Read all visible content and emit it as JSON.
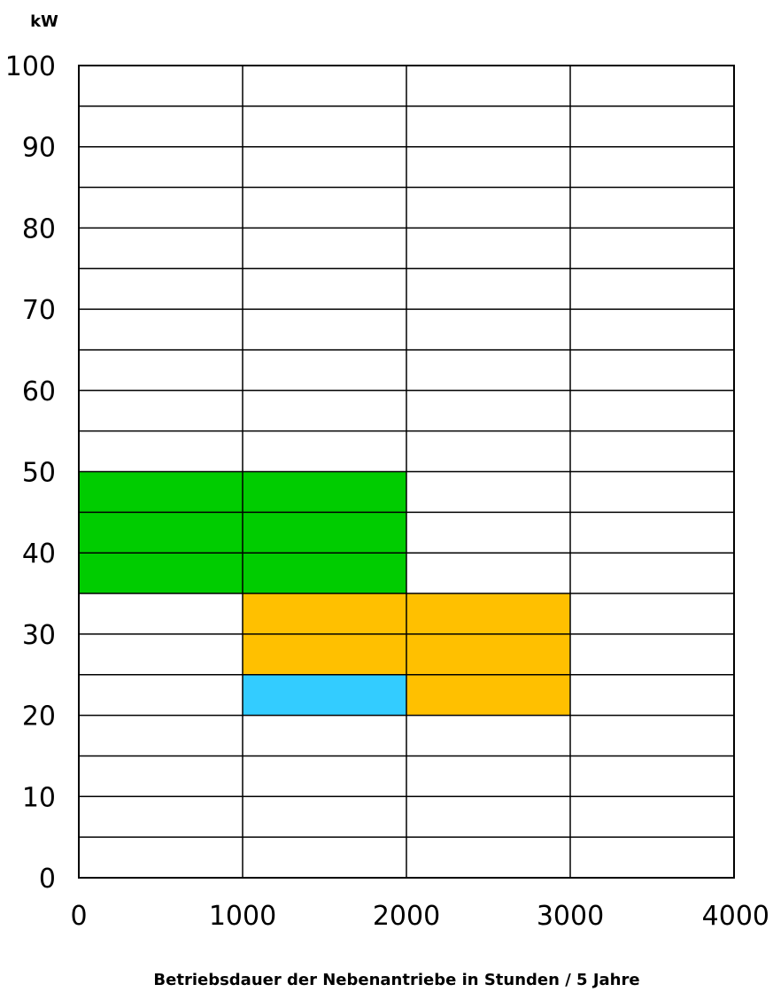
{
  "chart_data": {
    "type": "heatmap",
    "title": "",
    "ylabel": "kW",
    "xlabel": "Betriebsdauer der Nebenantriebe in Stunden / 5 Jahre",
    "xlim": [
      0,
      4000
    ],
    "ylim": [
      0,
      100
    ],
    "x_ticks": [
      "0",
      "1000",
      "2000",
      "3000",
      "4000"
    ],
    "y_ticks": [
      "0",
      "10",
      "20",
      "30",
      "40",
      "50",
      "60",
      "70",
      "80",
      "90",
      "100"
    ],
    "x_tick_values": [
      0,
      1000,
      2000,
      3000,
      4000
    ],
    "y_tick_values": [
      0,
      10,
      20,
      30,
      40,
      50,
      60,
      70,
      80,
      90,
      100
    ],
    "grid": true,
    "x_grid_step": 1000,
    "y_grid_step": 5,
    "regions": [
      {
        "x": [
          0,
          2000
        ],
        "y": [
          35,
          50
        ],
        "color": "#00cc00"
      },
      {
        "x": [
          1000,
          3000
        ],
        "y": [
          25,
          35
        ],
        "color": "#ffc000"
      },
      {
        "x": [
          2000,
          3000
        ],
        "y": [
          20,
          25
        ],
        "color": "#ffc000"
      },
      {
        "x": [
          1000,
          2000
        ],
        "y": [
          20,
          25
        ],
        "color": "#33ccff"
      }
    ]
  }
}
